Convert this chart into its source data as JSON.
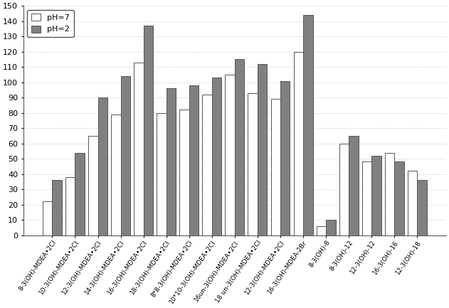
{
  "categories": [
    "8-3(OH)-MDEA•2Cl",
    "10-3(OH)-MDEA•2Cl",
    "12-3(OH)-MDEA•2Cl",
    "14-3(OH)-MDEA•2Cl",
    "16-3(OH)-MDEA•2Cl",
    "18-3(OH)-MDEA•2Cl",
    "8*8-3(OH)-MDEA•2Cl",
    "10*10-3(OH)-MDEA•2Cl",
    "16un-3(OH)-MDEA•2Cl",
    "18 un-3(OH)-MDEA•2Cl",
    "12-3(OH)-MDEA•2Cl",
    "16-3(OH)-MDEA-2Br",
    "8-3(OH)-8",
    "8-3(OH)-12",
    "12-3(OH)-12",
    "16-3(OH)-16",
    "12-3(OH)-18"
  ],
  "ph7_values": [
    22,
    38,
    65,
    79,
    113,
    80,
    82,
    92,
    105,
    93,
    89,
    120,
    6,
    60,
    48,
    54,
    42
  ],
  "ph2_values": [
    36,
    54,
    90,
    104,
    137,
    96,
    98,
    103,
    115,
    112,
    101,
    144,
    10,
    65,
    52,
    48,
    36
  ],
  "bar_color_ph7": "#ffffff",
  "bar_color_ph2": "#808080",
  "bar_edgecolor": "#555555",
  "ylim": [
    0,
    150
  ],
  "yticks": [
    0,
    10,
    20,
    30,
    40,
    50,
    60,
    70,
    80,
    90,
    100,
    110,
    120,
    130,
    140,
    150
  ],
  "legend_ph7": "pH=7",
  "legend_ph2": "pH=2",
  "background_color": "#ffffff",
  "plot_bg_color": "#ffffff",
  "bar_width": 0.42,
  "tick_fontsize": 8,
  "label_fontsize": 6.5,
  "label_rotation": 55
}
